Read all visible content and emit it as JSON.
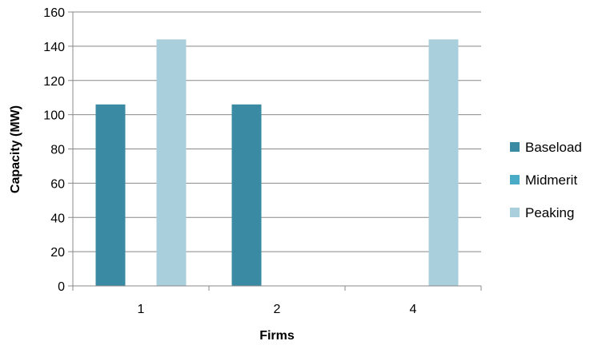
{
  "chart_data": {
    "type": "bar",
    "title": "",
    "xlabel": "Firms",
    "ylabel": "Capacity (MW)",
    "categories": [
      "1",
      "2",
      "4"
    ],
    "series": [
      {
        "name": "Baseload",
        "color": "#3b8aa3",
        "values": [
          106,
          106,
          0
        ]
      },
      {
        "name": "Midmerit",
        "color": "#4aabc6",
        "values": [
          0,
          0,
          0
        ]
      },
      {
        "name": "Peaking",
        "color": "#aacfdc",
        "values": [
          144,
          0,
          144
        ]
      }
    ],
    "ylim": [
      0,
      160
    ],
    "yticks": [
      0,
      20,
      40,
      60,
      80,
      100,
      120,
      140,
      160
    ],
    "grid": true,
    "legend_position": "right"
  }
}
